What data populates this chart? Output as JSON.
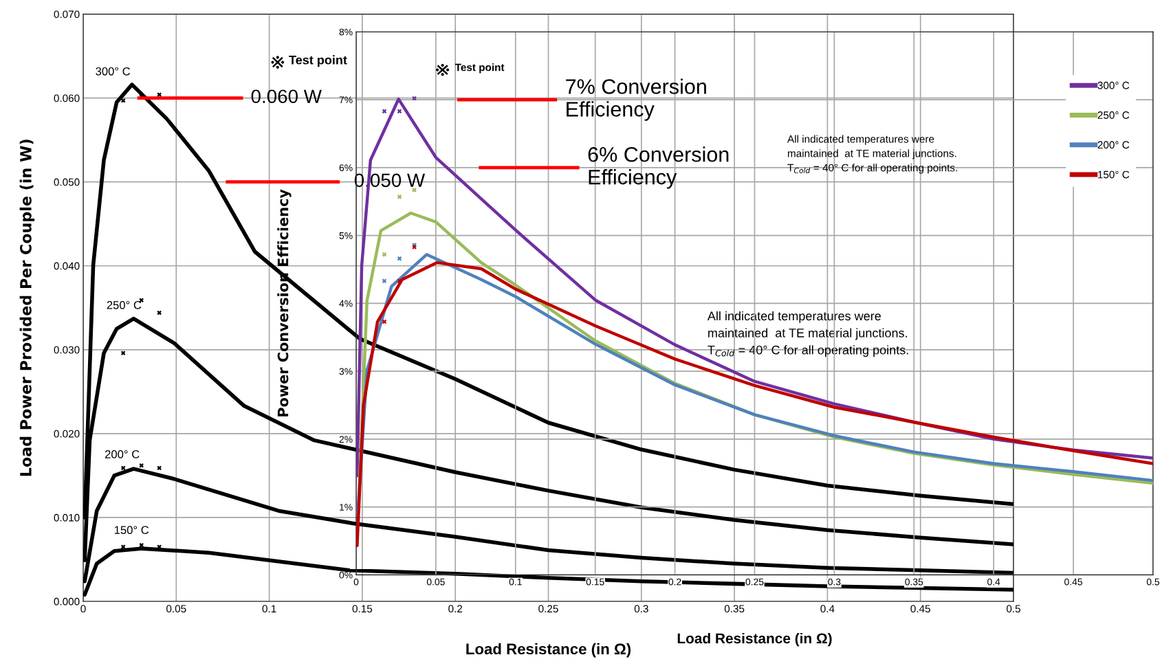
{
  "chart_data": [
    {
      "type": "line",
      "xlabel": "Load Resistance (in Ω)",
      "ylabel": "Load Power Provided Per Couple (in W)",
      "xlim": [
        0,
        0.5
      ],
      "ylim": [
        0,
        0.07
      ],
      "xticks": [
        0,
        0.05,
        0.1,
        0.15,
        0.2,
        0.25,
        0.3,
        0.35,
        0.4,
        0.45,
        0.5
      ],
      "yticks": [
        {
          "value": 0,
          "label": "0.000"
        },
        {
          "value": 0.01,
          "label": "0.010"
        },
        {
          "value": 0.02,
          "label": "0.020"
        },
        {
          "value": 0.03,
          "label": "0.030"
        },
        {
          "value": 0.04,
          "label": "0.040"
        },
        {
          "value": 0.05,
          "label": "0.050"
        },
        {
          "value": 0.06,
          "label": "0.060"
        },
        {
          "value": 0.07,
          "label": "0.070"
        }
      ],
      "grid": true,
      "series": [
        {
          "color": "#000000",
          "x": [
            0.0008,
            0.0054,
            0.0111,
            0.018,
            0.0262,
            0.045,
            0.0676,
            0.0922,
            0.1487,
            0.2,
            0.25,
            0.3,
            0.35,
            0.4,
            0.45,
            0.5
          ],
          "values": [
            0.01,
            0.0401,
            0.0526,
            0.0595,
            0.0616,
            0.0575,
            0.0513,
            0.0417,
            0.0313,
            0.0265,
            0.0213,
            0.0181,
            0.0157,
            0.0138,
            0.0126,
            0.0116
          ]
        },
        {
          "color": "#000000",
          "x": [
            0.0008,
            0.0035,
            0.0111,
            0.018,
            0.0271,
            0.0488,
            0.0865,
            0.1242,
            0.2,
            0.25,
            0.3,
            0.35,
            0.4,
            0.45,
            0.5
          ],
          "values": [
            0.0049,
            0.0192,
            0.0296,
            0.0325,
            0.0337,
            0.0308,
            0.0233,
            0.0192,
            0.0154,
            0.0132,
            0.0112,
            0.0097,
            0.0085,
            0.0076,
            0.0068
          ]
        },
        {
          "color": "#000000",
          "x": [
            0.0008,
            0.0073,
            0.0167,
            0.0271,
            0.0488,
            0.105,
            0.145,
            0.2,
            0.25,
            0.3,
            0.35,
            0.4,
            0.45,
            0.5
          ],
          "values": [
            0.0024,
            0.0108,
            0.015,
            0.0158,
            0.0146,
            0.0108,
            0.0093,
            0.0077,
            0.0061,
            0.0052,
            0.0045,
            0.004,
            0.0037,
            0.0034
          ]
        },
        {
          "color": "#000000",
          "x": [
            0.0008,
            0.0073,
            0.0167,
            0.0318,
            0.0676,
            0.1431,
            0.2,
            0.25,
            0.3,
            0.35,
            0.4,
            0.45,
            0.5
          ],
          "values": [
            0.0008,
            0.0045,
            0.006,
            0.0063,
            0.0058,
            0.0037,
            0.0033,
            0.0028,
            0.0024,
            0.0021,
            0.0018,
            0.0016,
            0.0014
          ]
        },
        {
          "type": "scatter",
          "color": "#000000",
          "marker": "cross",
          "x": [
            0.0215,
            0.0313,
            0.0409
          ],
          "values": [
            0.0597,
            0.0602,
            0.0604
          ]
        },
        {
          "type": "scatter",
          "color": "#000000",
          "marker": "cross",
          "x": [
            0.0215,
            0.0313,
            0.0409
          ],
          "values": [
            0.0296,
            0.0359,
            0.0344
          ]
        },
        {
          "type": "scatter",
          "color": "#000000",
          "marker": "cross",
          "x": [
            0.0215,
            0.0313,
            0.0409
          ],
          "values": [
            0.0159,
            0.0162,
            0.0159
          ]
        },
        {
          "type": "scatter",
          "color": "#000000",
          "marker": "cross",
          "x": [
            0.0215,
            0.0313,
            0.0409
          ],
          "values": [
            0.0065,
            0.0067,
            0.0065
          ]
        }
      ],
      "ref_lines": [
        {
          "axis": "y",
          "value": 0.06,
          "label": "0.060 W",
          "color": "#ff0000"
        },
        {
          "axis": "y",
          "value": 0.05,
          "label": "0.050 W",
          "color": "#ff0000"
        }
      ],
      "annotations": [
        "300° C",
        "250° C",
        "200° C",
        "150° C",
        "Test point",
        "All indicated temperatures were\nmaintained  at TE material junctions.\nT$_{Cold}$ = 40° C for all operating points."
      ]
    },
    {
      "type": "line",
      "xlabel": "Load Resistance (in Ω)",
      "ylabel": "Power Conversion Efficiency",
      "xlim": [
        0,
        0.5
      ],
      "ylim": [
        0,
        8
      ],
      "xticks": [
        0,
        0.05,
        0.1,
        0.15,
        0.2,
        0.25,
        0.3,
        0.35,
        0.4,
        0.45,
        0.5
      ],
      "yticks": [
        {
          "value": 0,
          "label": "0%"
        },
        {
          "value": 1,
          "label": "1%"
        },
        {
          "value": 2,
          "label": "2%"
        },
        {
          "value": 3,
          "label": "3%"
        },
        {
          "value": 4,
          "label": "4%"
        },
        {
          "value": 5,
          "label": "5%"
        },
        {
          "value": 6,
          "label": "6%"
        },
        {
          "value": 7,
          "label": "7%"
        },
        {
          "value": 8,
          "label": "8%"
        }
      ],
      "grid": true,
      "legend": "top right",
      "series": [
        {
          "name": "300° C",
          "color": "#7030a0",
          "x": [
            0.0006,
            0.0035,
            0.009,
            0.0266,
            0.05,
            0.0785,
            0.1,
            0.15,
            0.2,
            0.25,
            0.3,
            0.35,
            0.4,
            0.45,
            0.5
          ],
          "values": [
            1.46,
            4.56,
            6.11,
            7.01,
            6.15,
            5.54,
            5.08,
            4.05,
            3.39,
            2.85,
            2.52,
            2.25,
            2.0,
            1.84,
            1.72
          ]
        },
        {
          "name": "250° C",
          "color": "#9bbb59",
          "x": [
            0.0015,
            0.0068,
            0.0155,
            0.0343,
            0.05,
            0.0785,
            0.1,
            0.15,
            0.2,
            0.25,
            0.3,
            0.35,
            0.4,
            0.45,
            0.5
          ],
          "values": [
            1.0,
            4.04,
            5.07,
            5.33,
            5.2,
            4.6,
            4.27,
            3.45,
            2.82,
            2.36,
            2.03,
            1.79,
            1.62,
            1.48,
            1.35
          ]
        },
        {
          "name": "200° C",
          "color": "#4f81bd",
          "x": [
            0.001,
            0.0068,
            0.0222,
            0.0442,
            0.0785,
            0.1,
            0.15,
            0.2,
            0.25,
            0.3,
            0.35,
            0.4,
            0.45,
            0.5
          ],
          "values": [
            0.9,
            3.01,
            4.25,
            4.72,
            4.35,
            4.1,
            3.4,
            2.8,
            2.36,
            2.05,
            1.81,
            1.64,
            1.52,
            1.39
          ]
        },
        {
          "name": "150° C",
          "color": "#c00000",
          "x": [
            0.0006,
            0.0046,
            0.0134,
            0.0288,
            0.0508,
            0.0785,
            0.1,
            0.15,
            0.2,
            0.25,
            0.3,
            0.35,
            0.4,
            0.45,
            0.5
          ],
          "values": [
            0.43,
            2.5,
            3.73,
            4.35,
            4.6,
            4.51,
            4.21,
            3.67,
            3.18,
            2.79,
            2.47,
            2.25,
            2.03,
            1.83,
            1.64
          ]
        },
        {
          "type": "scatter",
          "color": "#7030a0",
          "marker": "cross",
          "x": [
            0.0177,
            0.0272,
            0.0365
          ],
          "values": [
            6.83,
            6.83,
            7.02
          ]
        },
        {
          "type": "scatter",
          "color": "#9bbb59",
          "marker": "cross",
          "x": [
            0.0177,
            0.0272,
            0.0365
          ],
          "values": [
            4.72,
            5.57,
            5.67
          ]
        },
        {
          "type": "scatter",
          "color": "#4f81bd",
          "marker": "cross",
          "x": [
            0.0177,
            0.0272,
            0.0365
          ],
          "values": [
            4.33,
            4.66,
            4.86
          ]
        },
        {
          "type": "scatter",
          "color": "#c00000",
          "marker": "cross",
          "x": [
            0.0177,
            0.0272,
            0.0365
          ],
          "values": [
            3.73,
            4.33,
            4.83
          ]
        }
      ],
      "ref_lines": [
        {
          "axis": "y",
          "value": 7,
          "label": "7% Conversion\nEfficiency",
          "color": "#ff0000"
        },
        {
          "axis": "y",
          "value": 6,
          "label": "6% Conversion\nEfficiency",
          "color": "#ff0000"
        }
      ],
      "annotations": [
        "Test point",
        "All indicated temperatures were\nmaintained  at TE material junctions.\nT$_{Cold}$ = 40° C for all operating points."
      ]
    }
  ]
}
